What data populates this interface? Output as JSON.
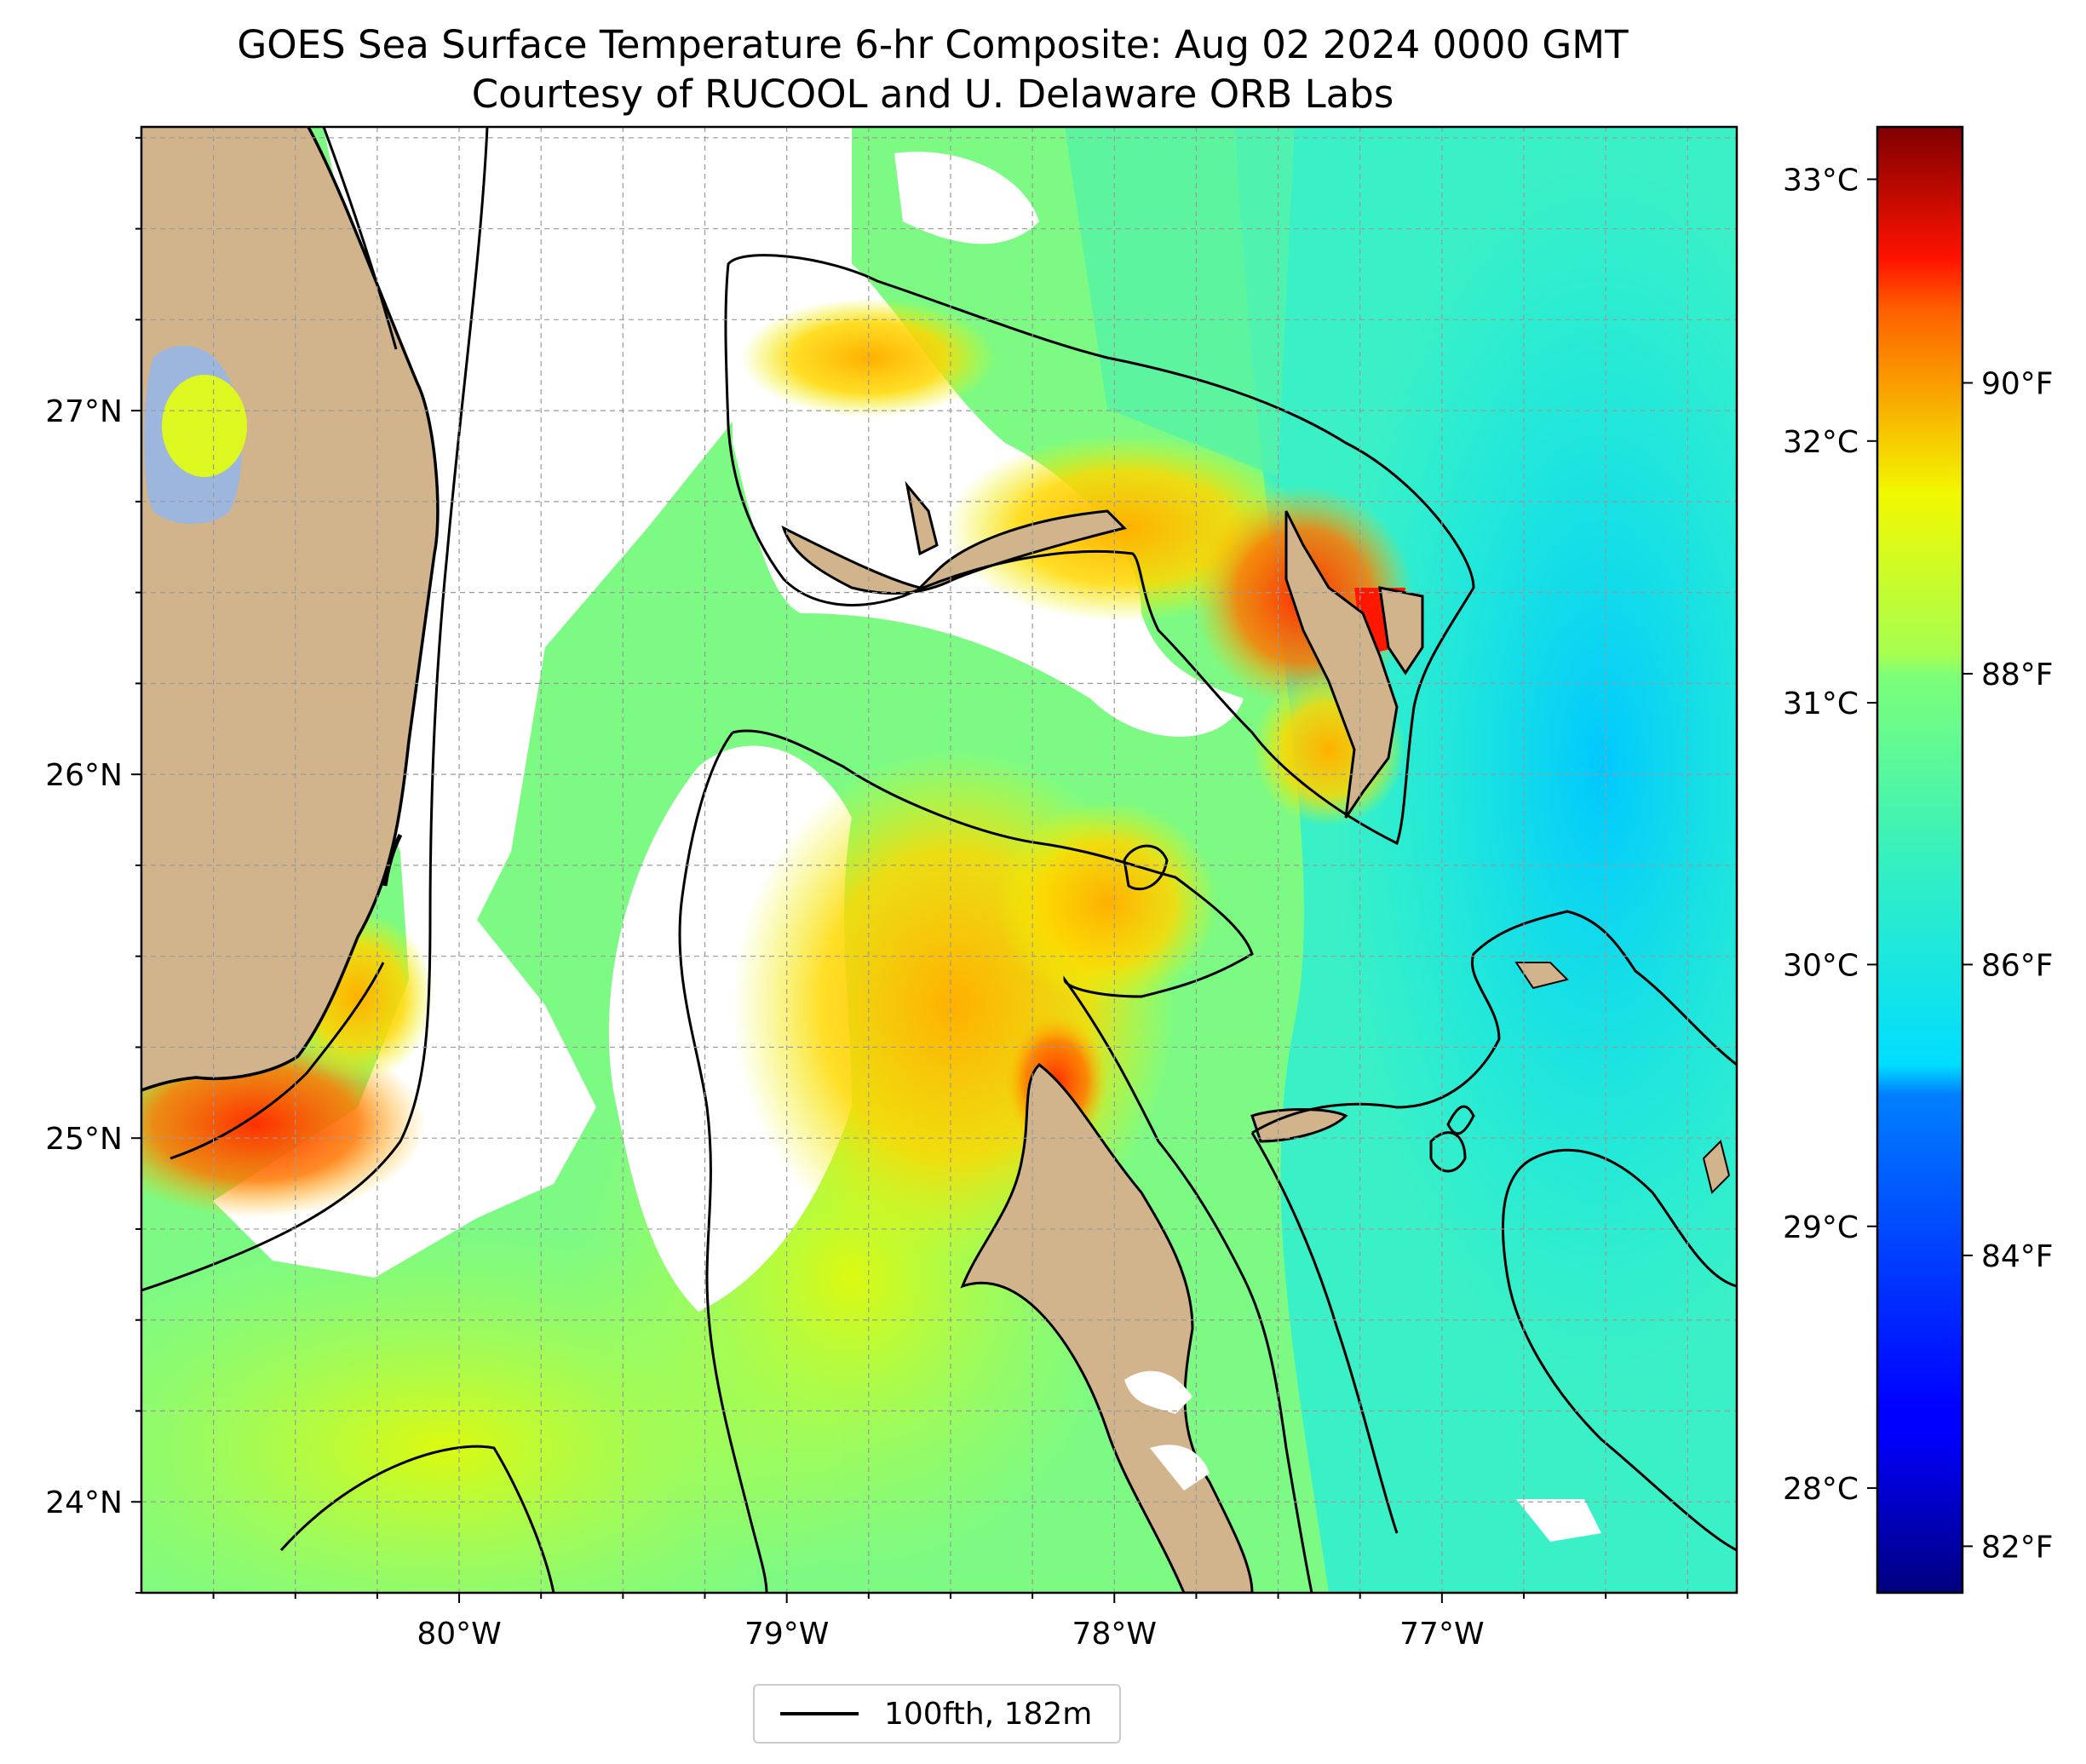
{
  "title": {
    "line1": "GOES Sea Surface Temperature 6-hr Composite: Aug 02 2024 0000 GMT",
    "line2": "Courtesy of RUCOOL and U. Delaware ORB Labs"
  },
  "map": {
    "lon_range": [
      -80.97,
      -76.1
    ],
    "lat_range": [
      23.75,
      27.78
    ],
    "lon_ticks": [
      {
        "lon": -80,
        "label": "80°W"
      },
      {
        "lon": -79,
        "label": "79°W"
      },
      {
        "lon": -78,
        "label": "78°W"
      },
      {
        "lon": -77,
        "label": "77°W"
      }
    ],
    "lat_ticks": [
      {
        "lat": 24,
        "label": "24°N"
      },
      {
        "lat": 25,
        "label": "25°N"
      },
      {
        "lat": 26,
        "label": "26°N"
      },
      {
        "lat": 27,
        "label": "27°N"
      }
    ],
    "grid": true,
    "colors": {
      "land": "#d2b48c",
      "inland_water": "#9db6de",
      "cloud_mask": "#ffffff",
      "open_ocean": "#35f0c0",
      "coastline": "#000000"
    },
    "legend": {
      "label": "100fth, 182m",
      "placement": "bottom-center"
    }
  },
  "colorbar": {
    "colormap": "jet",
    "range_c": [
      27.6,
      33.2
    ],
    "celsius_ticks": [
      {
        "value": 28,
        "label": "28°C"
      },
      {
        "value": 29,
        "label": "29°C"
      },
      {
        "value": 30,
        "label": "30°C"
      },
      {
        "value": 31,
        "label": "31°C"
      },
      {
        "value": 32,
        "label": "32°C"
      },
      {
        "value": 33,
        "label": "33°C"
      }
    ],
    "fahrenheit_ticks": [
      {
        "value": 82,
        "label": "82°F"
      },
      {
        "value": 84,
        "label": "84°F"
      },
      {
        "value": 86,
        "label": "86°F"
      },
      {
        "value": 88,
        "label": "88°F"
      },
      {
        "value": 90,
        "label": "90°F"
      }
    ]
  }
}
